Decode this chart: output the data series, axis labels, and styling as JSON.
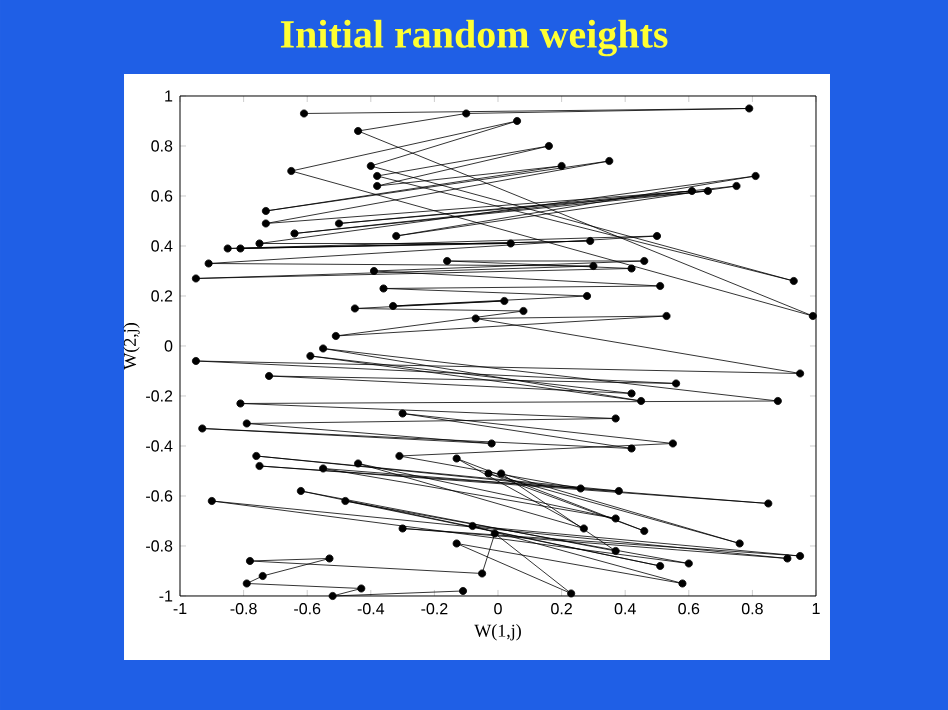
{
  "chart_data": {
    "type": "line",
    "title": "Initial random weights",
    "xlabel": "W(1,j)",
    "ylabel": "W(2,j)",
    "xlim": [
      -1,
      1
    ],
    "ylim": [
      -1,
      1
    ],
    "xticks": [
      -1,
      -0.8,
      -0.6,
      -0.4,
      -0.2,
      0,
      0.2,
      0.4,
      0.6,
      0.8,
      1
    ],
    "yticks": [
      -1,
      -0.8,
      -0.6,
      -0.4,
      -0.2,
      0,
      0.2,
      0.4,
      0.6,
      0.8,
      1
    ],
    "marker": "circle",
    "line_style": "solid",
    "series": [
      {
        "color": "#000000",
        "x": [
          -0.61,
          0.79,
          -0.1,
          -0.44,
          0.99,
          -0.65,
          0.06,
          -0.4,
          0.93,
          -0.38,
          0.16,
          -0.38,
          0.2,
          -0.73,
          0.35,
          -0.73,
          0.61,
          -0.5,
          0.66,
          -0.64,
          0.75,
          -0.32,
          0.81,
          -0.75,
          0.04,
          -0.81,
          0.29,
          -0.85,
          0.5,
          -0.91,
          0.3,
          -0.95,
          0.42,
          -0.16,
          0.46,
          -0.39,
          0.51,
          -0.36,
          0.28,
          -0.33,
          0.02,
          -0.45,
          0.08,
          -0.51,
          0.53,
          -0.07,
          0.95,
          -0.95,
          0.56,
          -0.72,
          0.42,
          -0.59,
          0.45,
          -0.55,
          0.88,
          -0.81,
          0.37,
          -0.79,
          -0.02,
          -0.93,
          0.42,
          -0.3,
          0.55,
          -0.31,
          0.26,
          -0.76,
          0.38,
          -0.75,
          0.85,
          -0.55,
          0.37,
          -0.44,
          0.27,
          -0.13,
          0.46,
          -0.03,
          0.76,
          0.01,
          0.37,
          -0.62,
          0.51,
          -0.48,
          0.6,
          -0.9,
          0.91,
          -0.3,
          0.95,
          -0.08,
          0.58,
          -0.13,
          0.23,
          -0.01,
          -0.05,
          -0.78,
          -0.53,
          -0.74,
          -0.79,
          -0.43,
          -0.52,
          -0.11
        ],
        "values": [
          0.93,
          0.95,
          0.93,
          0.86,
          0.12,
          0.7,
          0.9,
          0.72,
          0.26,
          0.68,
          0.8,
          0.64,
          0.72,
          0.54,
          0.74,
          0.49,
          0.62,
          0.49,
          0.62,
          0.45,
          0.64,
          0.44,
          0.68,
          0.41,
          0.41,
          0.39,
          0.42,
          0.39,
          0.44,
          0.33,
          0.32,
          0.27,
          0.31,
          0.34,
          0.34,
          0.3,
          0.24,
          0.23,
          0.2,
          0.16,
          0.18,
          0.15,
          0.14,
          0.04,
          0.12,
          0.11,
          -0.11,
          -0.06,
          -0.15,
          -0.12,
          -0.19,
          -0.04,
          -0.22,
          -0.01,
          -0.22,
          -0.23,
          -0.29,
          -0.31,
          -0.39,
          -0.33,
          -0.41,
          -0.27,
          -0.39,
          -0.44,
          -0.57,
          -0.44,
          -0.58,
          -0.48,
          -0.63,
          -0.49,
          -0.69,
          -0.47,
          -0.73,
          -0.45,
          -0.74,
          -0.51,
          -0.79,
          -0.51,
          -0.82,
          -0.58,
          -0.88,
          -0.62,
          -0.87,
          -0.62,
          -0.85,
          -0.73,
          -0.84,
          -0.72,
          -0.95,
          -0.79,
          -0.99,
          -0.75,
          -0.91,
          -0.86,
          -0.85,
          -0.92,
          -0.95,
          -0.97,
          -1.0,
          -0.98
        ]
      }
    ]
  }
}
